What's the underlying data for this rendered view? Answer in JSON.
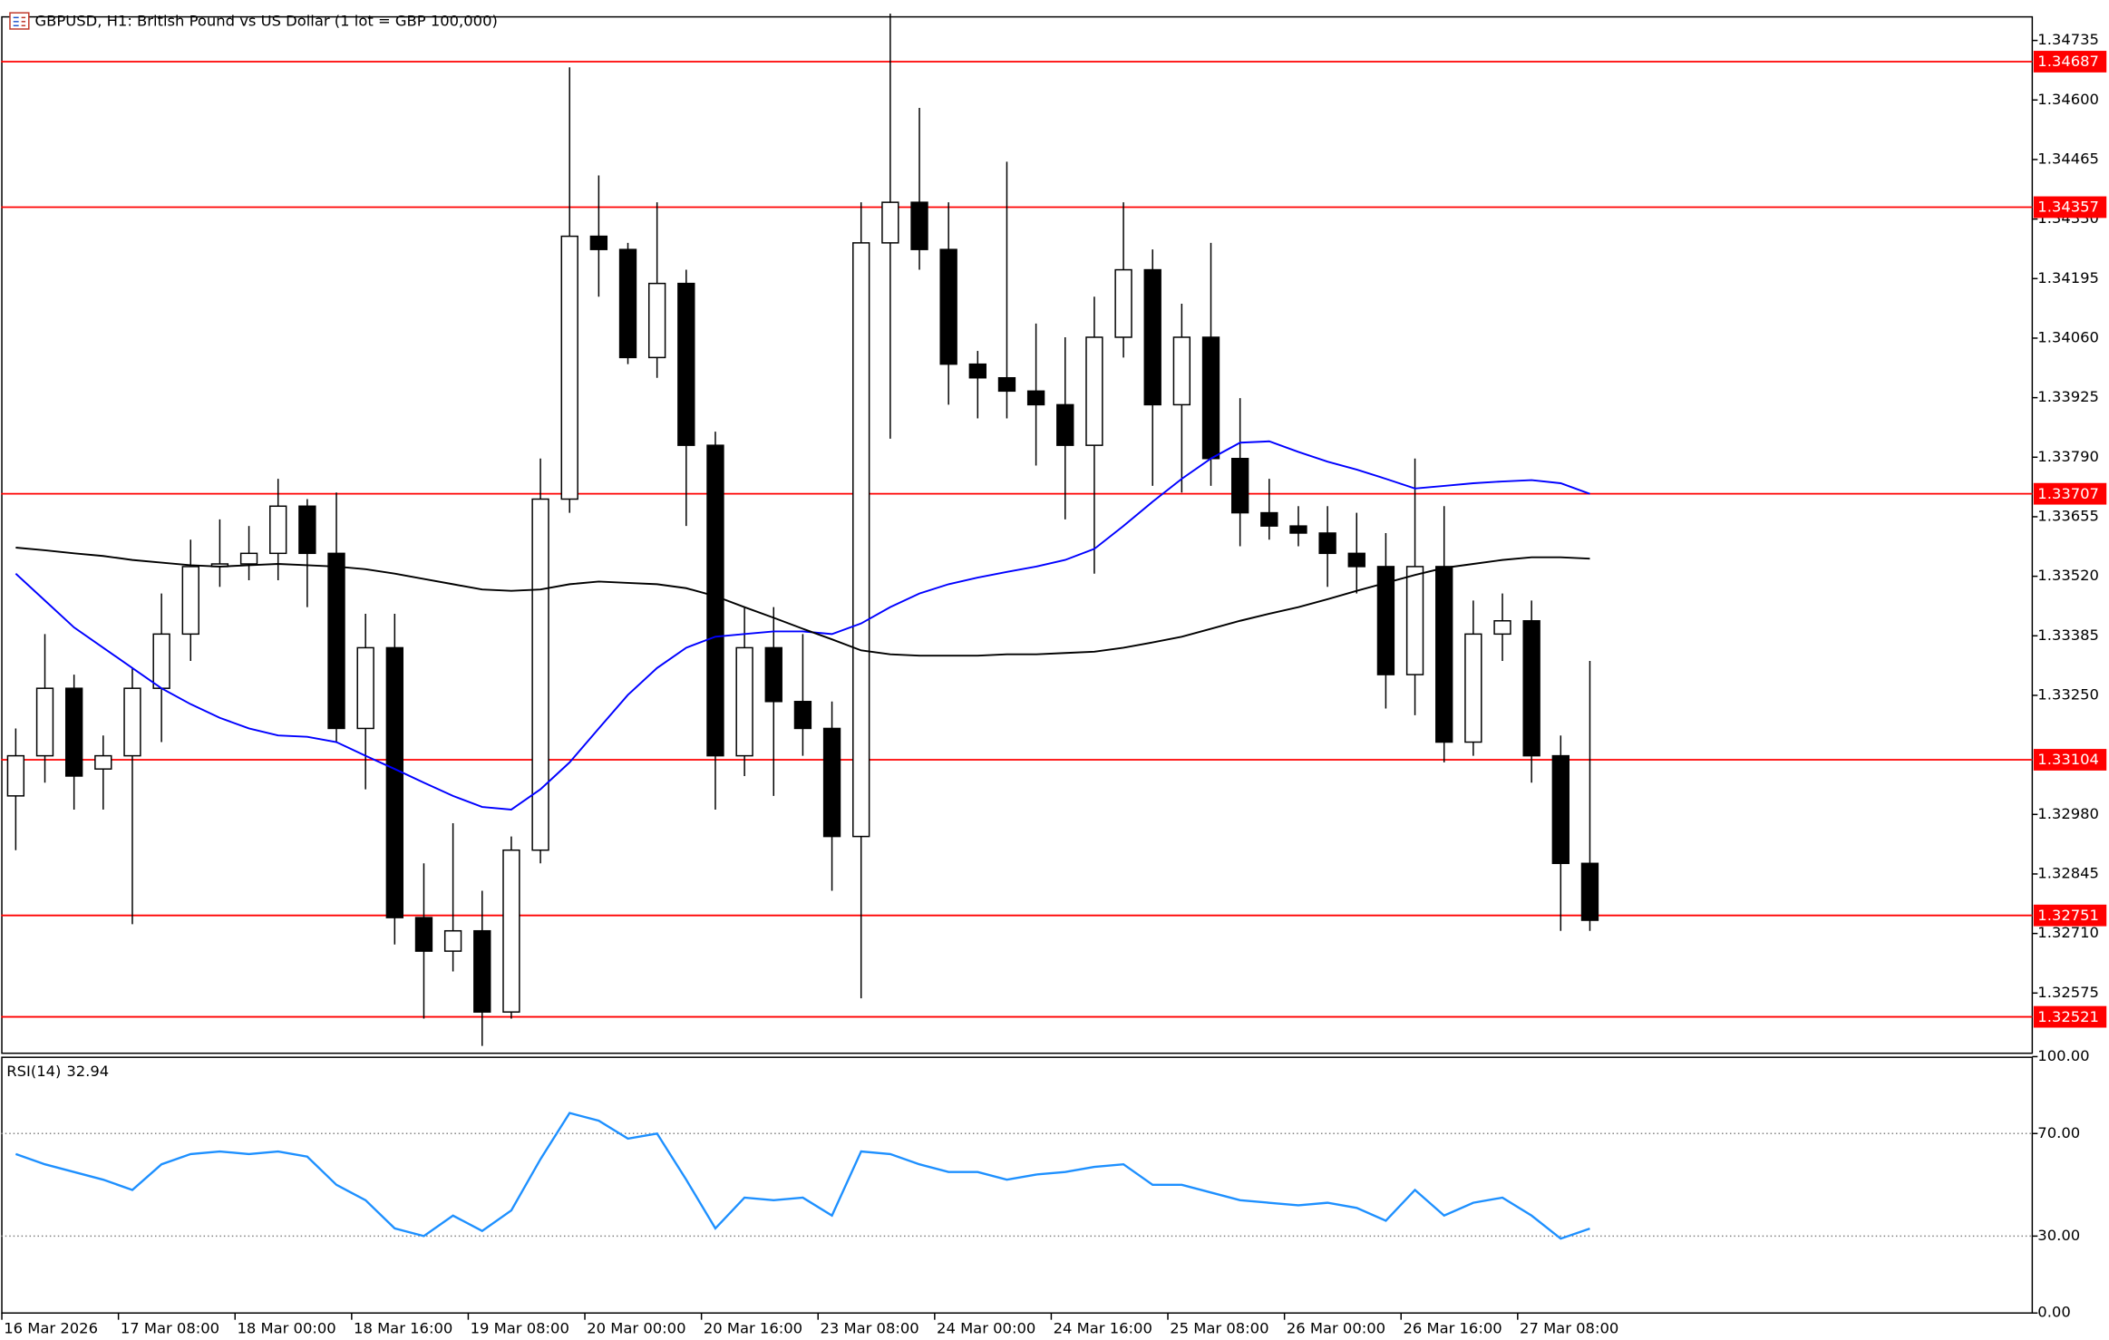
{
  "chart_data": [
    {
      "type": "candlestick",
      "title": "GBPUSD, H1:  British Pound vs US Dollar (1 lot = GBP 100,000)",
      "categories": [
        "16 Mar 2026",
        null,
        null,
        null,
        "17 Mar 08:00",
        null,
        null,
        null,
        "18 Mar 00:00",
        null,
        null,
        null,
        "18 Mar 16:00",
        null,
        null,
        null,
        "19 Mar 08:00",
        null,
        null,
        null,
        "20 Mar 00:00",
        null,
        null,
        null,
        "20 Mar 16:00",
        null,
        null,
        null,
        "23 Mar 08:00",
        null,
        null,
        null,
        "24 Mar 00:00",
        null,
        null,
        null,
        "24 Mar 16:00",
        null,
        null,
        null,
        "25 Mar 08:00",
        null,
        null,
        null,
        "26 Mar 00:00",
        null,
        null,
        null,
        "26 Mar 16:00",
        null,
        null,
        null,
        "27 Mar 08:00",
        null,
        null
      ],
      "open": [
        1.33022,
        1.33113,
        1.33266,
        1.33083,
        1.33113,
        1.33266,
        1.33389,
        1.33542,
        1.33548,
        1.33572,
        1.33679,
        1.33572,
        1.33175,
        1.33358,
        1.32746,
        1.3267,
        1.32716,
        1.32532,
        1.32899,
        1.33695,
        1.34291,
        1.34261,
        1.34016,
        1.34184,
        1.33817,
        1.33113,
        1.33358,
        1.33236,
        1.33175,
        1.3293,
        1.34276,
        1.34368,
        1.34261,
        1.34001,
        1.3397,
        1.3394,
        1.33909,
        1.33817,
        1.34062,
        1.34215,
        1.33909,
        1.34062,
        1.33787,
        1.33664,
        1.33634,
        1.33618,
        1.33572,
        1.33542,
        1.33297,
        1.33542,
        1.33144,
        1.33389,
        1.33419,
        1.33113,
        1.32869
      ],
      "high": [
        1.33175,
        1.33389,
        1.33297,
        1.33159,
        1.33312,
        1.33481,
        1.33603,
        1.33649,
        1.33634,
        1.33741,
        1.33695,
        1.3371,
        1.33435,
        1.33435,
        1.32869,
        1.3296,
        1.32807,
        1.3293,
        1.33787,
        1.34674,
        1.34429,
        1.34276,
        1.34368,
        1.34215,
        1.33848,
        1.3345,
        1.3345,
        1.33389,
        1.33236,
        1.34368,
        1.34796,
        1.34582,
        1.34368,
        1.34031,
        1.3446,
        1.34093,
        1.34062,
        1.34154,
        1.34368,
        1.34261,
        1.34138,
        1.34276,
        1.33924,
        1.33741,
        1.33679,
        1.33679,
        1.33664,
        1.33618,
        1.33787,
        1.33679,
        1.33465,
        1.33481,
        1.33465,
        1.33159,
        1.33328
      ],
      "low": [
        1.32899,
        1.33052,
        1.32991,
        1.32991,
        1.32731,
        1.33144,
        1.33328,
        1.33496,
        1.33511,
        1.33511,
        1.3345,
        1.33144,
        1.33037,
        1.32685,
        1.32517,
        1.32624,
        1.32455,
        1.32517,
        1.32869,
        1.33664,
        1.34154,
        1.34001,
        1.3397,
        1.33634,
        1.32991,
        1.33067,
        1.33022,
        1.33113,
        1.32807,
        1.32563,
        1.33832,
        1.34215,
        1.33909,
        1.33878,
        1.33878,
        1.33771,
        1.33649,
        1.33526,
        1.34016,
        1.33725,
        1.3371,
        1.33725,
        1.33588,
        1.33603,
        1.33588,
        1.33496,
        1.33481,
        1.3322,
        1.33205,
        1.33098,
        1.33113,
        1.33328,
        1.33052,
        1.32716,
        1.32716
      ],
      "close": [
        1.33113,
        1.33266,
        1.33067,
        1.33113,
        1.33266,
        1.33389,
        1.33542,
        1.33548,
        1.33572,
        1.33679,
        1.33572,
        1.33175,
        1.33358,
        1.32746,
        1.3267,
        1.32716,
        1.32532,
        1.32899,
        1.33695,
        1.34291,
        1.34261,
        1.34016,
        1.34184,
        1.33817,
        1.33113,
        1.33358,
        1.33236,
        1.33175,
        1.3293,
        1.34276,
        1.34368,
        1.34261,
        1.34001,
        1.3397,
        1.3394,
        1.33909,
        1.33817,
        1.34062,
        1.34215,
        1.33909,
        1.34062,
        1.33787,
        1.33664,
        1.33634,
        1.33618,
        1.33572,
        1.33542,
        1.33297,
        1.33542,
        1.33144,
        1.33389,
        1.33419,
        1.33113,
        1.32869,
        1.3274
      ],
      "up_color": "#ffffff",
      "down_color": "#000000",
      "series": [
        {
          "color": "#0000ff",
          "values": [
            1.33526,
            1.33465,
            1.33404,
            1.33358,
            1.33312,
            1.33266,
            1.3323,
            1.33199,
            1.33175,
            1.33159,
            1.33156,
            1.33144,
            1.33113,
            1.33083,
            1.33052,
            1.33022,
            1.32997,
            1.32991,
            1.33037,
            1.33098,
            1.33175,
            1.33251,
            1.33312,
            1.33358,
            1.33383,
            1.33389,
            1.33395,
            1.33395,
            1.33389,
            1.33413,
            1.3345,
            1.33481,
            1.33502,
            1.33517,
            1.3353,
            1.33542,
            1.33557,
            1.33582,
            1.33634,
            1.33689,
            1.33741,
            1.33787,
            1.33823,
            1.33826,
            1.33802,
            1.3378,
            1.33762,
            1.33741,
            1.33719,
            1.33725,
            1.33731,
            1.33735,
            1.33738,
            1.33731,
            1.33707
          ]
        },
        {
          "color": "#000000",
          "values": [
            1.33585,
            1.33579,
            1.33572,
            1.33566,
            1.33557,
            1.33551,
            1.33545,
            1.33542,
            1.33545,
            1.33548,
            1.33545,
            1.33542,
            1.33536,
            1.33526,
            1.33514,
            1.33502,
            1.3349,
            1.33487,
            1.3349,
            1.33502,
            1.33508,
            1.33505,
            1.33502,
            1.33493,
            1.33475,
            1.3345,
            1.33426,
            1.33401,
            1.33377,
            1.33352,
            1.33343,
            1.3334,
            1.3334,
            1.3334,
            1.33343,
            1.33343,
            1.33346,
            1.33349,
            1.33358,
            1.3337,
            1.33383,
            1.33401,
            1.33419,
            1.33435,
            1.3345,
            1.33468,
            1.33487,
            1.33505,
            1.33523,
            1.33539,
            1.33548,
            1.33557,
            1.33563,
            1.33563,
            1.3356
          ]
        }
      ],
      "levels": [
        1.34687,
        1.34357,
        1.33707,
        1.33104,
        1.32751,
        1.32521
      ],
      "levels_color": "#ff0000",
      "ylim": [
        1.3244,
        1.3479
      ],
      "yticks": [
        1.34735,
        {
          "value": 1.346,
          "label": "1.34600"
        },
        1.34465,
        {
          "value": 1.3433,
          "label": "1.34330"
        },
        1.34195,
        {
          "value": 1.3406,
          "label": "1.34060"
        },
        1.33925,
        {
          "value": 1.3379,
          "label": "1.33790"
        },
        1.33655,
        {
          "value": 1.3352,
          "label": "1.33520"
        },
        1.33385,
        {
          "value": 1.3325,
          "label": "1.33250"
        },
        {
          "value": 1.3298,
          "label": "1.32980"
        },
        1.32845,
        {
          "value": 1.3271,
          "label": "1.32710"
        },
        1.32575
      ]
    },
    {
      "type": "line",
      "title": "RSI(14)",
      "color": "#1e90ff",
      "values": [
        62,
        58,
        55,
        52,
        48,
        58,
        62,
        63,
        62,
        63,
        61,
        50,
        44,
        33,
        30,
        38,
        32,
        40,
        60,
        78,
        75,
        68,
        70,
        52,
        33,
        45,
        44,
        45,
        38,
        63,
        62,
        58,
        55,
        55,
        52,
        54,
        55,
        57,
        58,
        50,
        50,
        47,
        44,
        43,
        42,
        43,
        41,
        36,
        48,
        38,
        43,
        45,
        38,
        29,
        32.94
      ],
      "levels": [
        70,
        30
      ],
      "ylim": [
        0,
        100
      ],
      "yticks": [
        {
          "value": 100,
          "label": "100.00"
        },
        {
          "value": 70,
          "label": "70.00"
        },
        {
          "value": 30,
          "label": "30.00"
        },
        {
          "value": 0,
          "label": "0.00"
        }
      ]
    }
  ]
}
